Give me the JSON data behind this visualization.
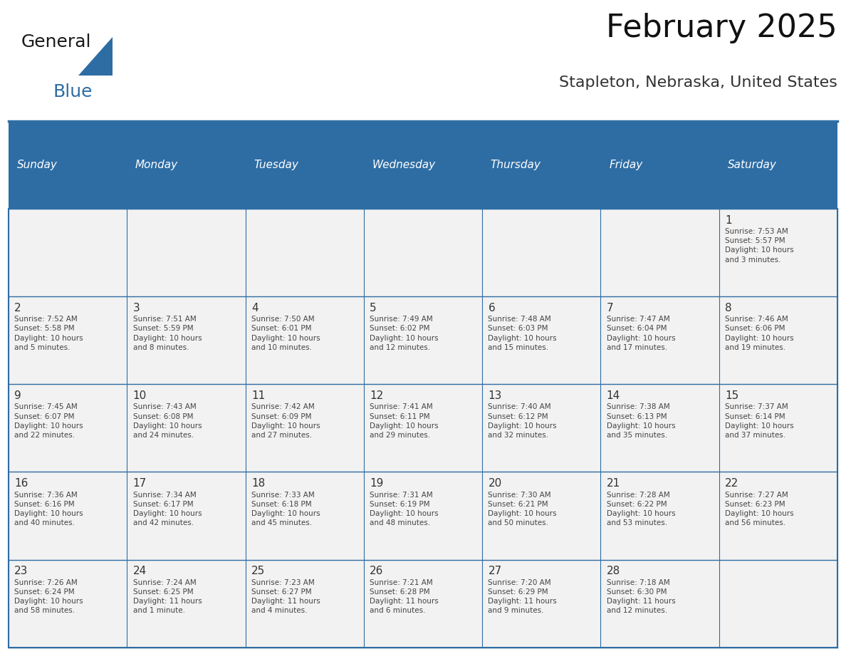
{
  "title": "February 2025",
  "subtitle": "Stapleton, Nebraska, United States",
  "days_of_week": [
    "Sunday",
    "Monday",
    "Tuesday",
    "Wednesday",
    "Thursday",
    "Friday",
    "Saturday"
  ],
  "header_bg": "#2E6DA4",
  "header_text_color": "#FFFFFF",
  "cell_bg_light": "#F2F2F2",
  "cell_bg_white": "#FFFFFF",
  "text_color": "#333333",
  "border_color": "#2E6DA4",
  "day_number_color": "#333333",
  "weeks": [
    [
      {
        "day": null,
        "info": null
      },
      {
        "day": null,
        "info": null
      },
      {
        "day": null,
        "info": null
      },
      {
        "day": null,
        "info": null
      },
      {
        "day": null,
        "info": null
      },
      {
        "day": null,
        "info": null
      },
      {
        "day": 1,
        "info": "Sunrise: 7:53 AM\nSunset: 5:57 PM\nDaylight: 10 hours\nand 3 minutes."
      }
    ],
    [
      {
        "day": 2,
        "info": "Sunrise: 7:52 AM\nSunset: 5:58 PM\nDaylight: 10 hours\nand 5 minutes."
      },
      {
        "day": 3,
        "info": "Sunrise: 7:51 AM\nSunset: 5:59 PM\nDaylight: 10 hours\nand 8 minutes."
      },
      {
        "day": 4,
        "info": "Sunrise: 7:50 AM\nSunset: 6:01 PM\nDaylight: 10 hours\nand 10 minutes."
      },
      {
        "day": 5,
        "info": "Sunrise: 7:49 AM\nSunset: 6:02 PM\nDaylight: 10 hours\nand 12 minutes."
      },
      {
        "day": 6,
        "info": "Sunrise: 7:48 AM\nSunset: 6:03 PM\nDaylight: 10 hours\nand 15 minutes."
      },
      {
        "day": 7,
        "info": "Sunrise: 7:47 AM\nSunset: 6:04 PM\nDaylight: 10 hours\nand 17 minutes."
      },
      {
        "day": 8,
        "info": "Sunrise: 7:46 AM\nSunset: 6:06 PM\nDaylight: 10 hours\nand 19 minutes."
      }
    ],
    [
      {
        "day": 9,
        "info": "Sunrise: 7:45 AM\nSunset: 6:07 PM\nDaylight: 10 hours\nand 22 minutes."
      },
      {
        "day": 10,
        "info": "Sunrise: 7:43 AM\nSunset: 6:08 PM\nDaylight: 10 hours\nand 24 minutes."
      },
      {
        "day": 11,
        "info": "Sunrise: 7:42 AM\nSunset: 6:09 PM\nDaylight: 10 hours\nand 27 minutes."
      },
      {
        "day": 12,
        "info": "Sunrise: 7:41 AM\nSunset: 6:11 PM\nDaylight: 10 hours\nand 29 minutes."
      },
      {
        "day": 13,
        "info": "Sunrise: 7:40 AM\nSunset: 6:12 PM\nDaylight: 10 hours\nand 32 minutes."
      },
      {
        "day": 14,
        "info": "Sunrise: 7:38 AM\nSunset: 6:13 PM\nDaylight: 10 hours\nand 35 minutes."
      },
      {
        "day": 15,
        "info": "Sunrise: 7:37 AM\nSunset: 6:14 PM\nDaylight: 10 hours\nand 37 minutes."
      }
    ],
    [
      {
        "day": 16,
        "info": "Sunrise: 7:36 AM\nSunset: 6:16 PM\nDaylight: 10 hours\nand 40 minutes."
      },
      {
        "day": 17,
        "info": "Sunrise: 7:34 AM\nSunset: 6:17 PM\nDaylight: 10 hours\nand 42 minutes."
      },
      {
        "day": 18,
        "info": "Sunrise: 7:33 AM\nSunset: 6:18 PM\nDaylight: 10 hours\nand 45 minutes."
      },
      {
        "day": 19,
        "info": "Sunrise: 7:31 AM\nSunset: 6:19 PM\nDaylight: 10 hours\nand 48 minutes."
      },
      {
        "day": 20,
        "info": "Sunrise: 7:30 AM\nSunset: 6:21 PM\nDaylight: 10 hours\nand 50 minutes."
      },
      {
        "day": 21,
        "info": "Sunrise: 7:28 AM\nSunset: 6:22 PM\nDaylight: 10 hours\nand 53 minutes."
      },
      {
        "day": 22,
        "info": "Sunrise: 7:27 AM\nSunset: 6:23 PM\nDaylight: 10 hours\nand 56 minutes."
      }
    ],
    [
      {
        "day": 23,
        "info": "Sunrise: 7:26 AM\nSunset: 6:24 PM\nDaylight: 10 hours\nand 58 minutes."
      },
      {
        "day": 24,
        "info": "Sunrise: 7:24 AM\nSunset: 6:25 PM\nDaylight: 11 hours\nand 1 minute."
      },
      {
        "day": 25,
        "info": "Sunrise: 7:23 AM\nSunset: 6:27 PM\nDaylight: 11 hours\nand 4 minutes."
      },
      {
        "day": 26,
        "info": "Sunrise: 7:21 AM\nSunset: 6:28 PM\nDaylight: 11 hours\nand 6 minutes."
      },
      {
        "day": 27,
        "info": "Sunrise: 7:20 AM\nSunset: 6:29 PM\nDaylight: 11 hours\nand 9 minutes."
      },
      {
        "day": 28,
        "info": "Sunrise: 7:18 AM\nSunset: 6:30 PM\nDaylight: 11 hours\nand 12 minutes."
      },
      {
        "day": null,
        "info": null
      }
    ]
  ],
  "logo_text_general": "General",
  "logo_text_blue": "Blue",
  "logo_color_general": "#1a1a1a",
  "logo_color_blue": "#2E6DA4",
  "logo_triangle_color": "#2E6DA4"
}
